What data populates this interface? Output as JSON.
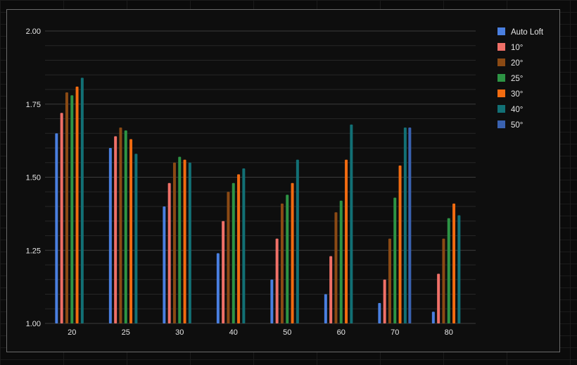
{
  "chart_data": {
    "type": "bar",
    "categories": [
      "20",
      "25",
      "30",
      "40",
      "50",
      "60",
      "70",
      "80"
    ],
    "ylim": [
      1.0,
      2.0
    ],
    "yticks": [
      "1.00",
      "1.25",
      "1.50",
      "1.75",
      "2.00"
    ],
    "grid": true,
    "legend_position": "top-right",
    "series": [
      {
        "name": "Auto Loft",
        "color": "#4a7fe0",
        "values": [
          1.65,
          1.6,
          1.4,
          1.24,
          1.15,
          1.1,
          1.07,
          1.04
        ]
      },
      {
        "name": "10°",
        "color": "#f07068",
        "values": [
          1.72,
          1.64,
          1.48,
          1.35,
          1.29,
          1.23,
          1.15,
          1.17
        ]
      },
      {
        "name": "20°",
        "color": "#8b4a14",
        "values": [
          1.79,
          1.67,
          1.55,
          1.45,
          1.41,
          1.38,
          1.29,
          1.29
        ]
      },
      {
        "name": "25°",
        "color": "#2d9444",
        "values": [
          1.78,
          1.66,
          1.57,
          1.48,
          1.44,
          1.42,
          1.43,
          1.36
        ]
      },
      {
        "name": "30°",
        "color": "#f26b10",
        "values": [
          1.81,
          1.63,
          1.56,
          1.51,
          1.48,
          1.56,
          1.54,
          1.41
        ]
      },
      {
        "name": "40°",
        "color": "#127075",
        "values": [
          1.84,
          1.58,
          1.55,
          1.53,
          1.56,
          1.68,
          1.67,
          1.37
        ]
      },
      {
        "name": "50°",
        "color": "#3a62b0",
        "values": [
          null,
          null,
          null,
          null,
          null,
          null,
          1.67,
          null
        ]
      }
    ]
  }
}
